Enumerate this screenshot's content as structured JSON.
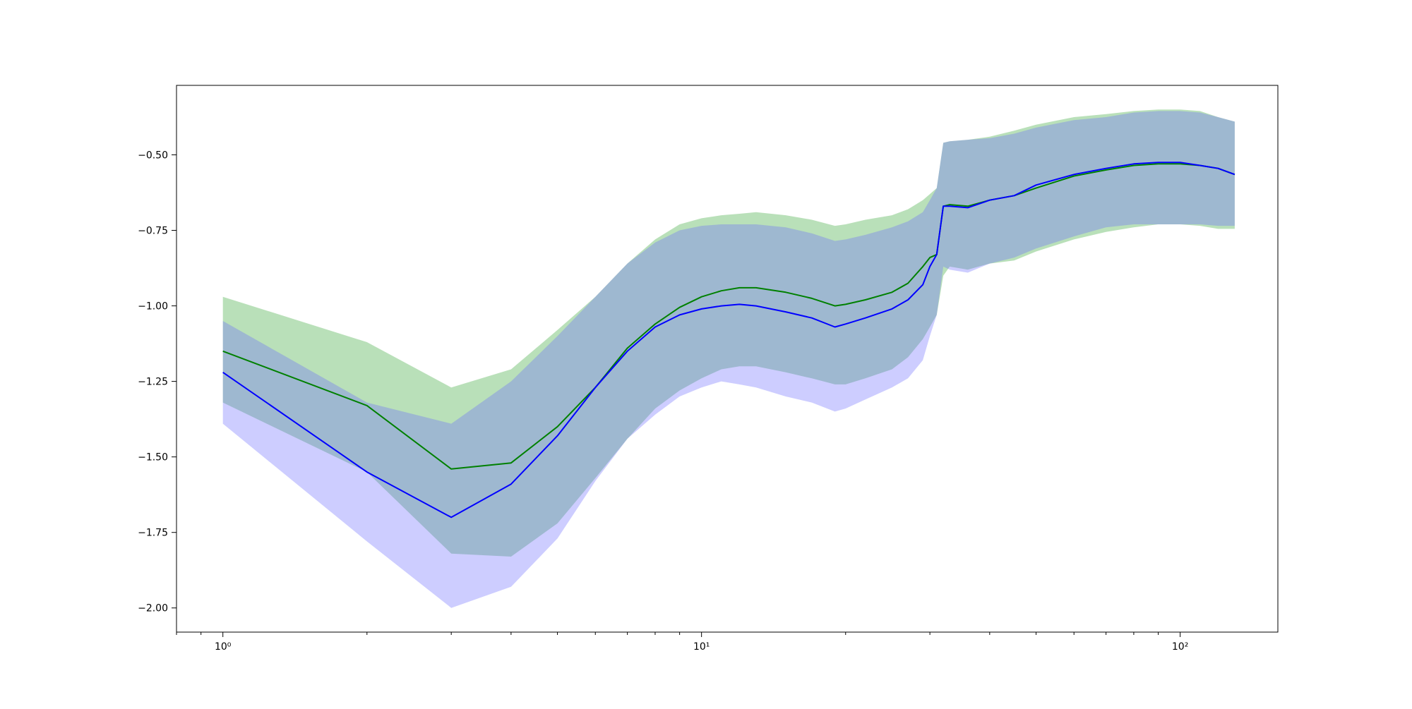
{
  "chart_data": {
    "type": "line",
    "title": "",
    "xlabel": "",
    "ylabel": "",
    "x_scale": "log",
    "xlim": [
      0.8,
      160
    ],
    "ylim": [
      -2.08,
      -0.27
    ],
    "grid": false,
    "legend": "none",
    "x_ticks": [
      {
        "value": 1,
        "label": "10⁰"
      },
      {
        "value": 10,
        "label": "10¹"
      },
      {
        "value": 100,
        "label": "10²"
      }
    ],
    "y_ticks": [
      {
        "value": -0.5,
        "label": "−0.50"
      },
      {
        "value": -0.75,
        "label": "−0.75"
      },
      {
        "value": -1.0,
        "label": "−1.00"
      },
      {
        "value": -1.25,
        "label": "−1.25"
      },
      {
        "value": -1.5,
        "label": "−1.50"
      },
      {
        "value": -1.75,
        "label": "−1.75"
      },
      {
        "value": -2.0,
        "label": "−2.00"
      }
    ],
    "series": [
      {
        "color": "#008000",
        "band_color": "#2ca02c",
        "x": [
          1,
          2,
          3,
          4,
          5,
          6,
          7,
          8,
          9,
          10,
          11,
          12,
          13,
          15,
          17,
          19,
          20,
          22,
          25,
          27,
          29,
          30,
          31,
          32,
          33,
          36,
          40,
          45,
          50,
          60,
          70,
          80,
          90,
          100,
          110,
          120,
          130
        ],
        "y": [
          -1.15,
          -1.33,
          -1.54,
          -1.52,
          -1.4,
          -1.27,
          -1.14,
          -1.06,
          -1.005,
          -0.97,
          -0.95,
          -0.94,
          -0.94,
          -0.955,
          -0.975,
          -1.0,
          -0.995,
          -0.98,
          -0.955,
          -0.925,
          -0.87,
          -0.84,
          -0.83,
          -0.67,
          -0.665,
          -0.67,
          -0.65,
          -0.635,
          -0.61,
          -0.57,
          -0.55,
          -0.535,
          -0.53,
          -0.53,
          -0.535,
          -0.545,
          -0.565
        ],
        "lower": [
          -1.32,
          -1.55,
          -1.82,
          -1.83,
          -1.72,
          -1.57,
          -1.44,
          -1.34,
          -1.28,
          -1.24,
          -1.21,
          -1.2,
          -1.2,
          -1.22,
          -1.24,
          -1.26,
          -1.26,
          -1.24,
          -1.21,
          -1.17,
          -1.11,
          -1.07,
          -1.03,
          -0.9,
          -0.87,
          -0.88,
          -0.86,
          -0.85,
          -0.82,
          -0.78,
          -0.755,
          -0.74,
          -0.73,
          -0.73,
          -0.735,
          -0.745,
          -0.745
        ],
        "upper": [
          -0.97,
          -1.12,
          -1.27,
          -1.21,
          -1.08,
          -0.97,
          -0.86,
          -0.78,
          -0.73,
          -0.71,
          -0.7,
          -0.695,
          -0.69,
          -0.7,
          -0.715,
          -0.735,
          -0.73,
          -0.715,
          -0.7,
          -0.68,
          -0.65,
          -0.63,
          -0.61,
          -0.46,
          -0.455,
          -0.45,
          -0.44,
          -0.42,
          -0.4,
          -0.375,
          -0.365,
          -0.355,
          -0.35,
          -0.35,
          -0.355,
          -0.375,
          -0.39
        ]
      },
      {
        "color": "#0000ff",
        "band_color": "#6666ff",
        "x": [
          1,
          2,
          3,
          4,
          5,
          6,
          7,
          8,
          9,
          10,
          11,
          12,
          13,
          15,
          17,
          19,
          20,
          22,
          25,
          27,
          29,
          30,
          31,
          32,
          33,
          36,
          40,
          45,
          50,
          60,
          70,
          80,
          90,
          100,
          110,
          120,
          130
        ],
        "y": [
          -1.22,
          -1.55,
          -1.7,
          -1.59,
          -1.43,
          -1.27,
          -1.15,
          -1.07,
          -1.03,
          -1.01,
          -1.0,
          -0.995,
          -1.0,
          -1.02,
          -1.04,
          -1.07,
          -1.06,
          -1.04,
          -1.01,
          -0.98,
          -0.93,
          -0.87,
          -0.83,
          -0.67,
          -0.67,
          -0.675,
          -0.65,
          -0.635,
          -0.6,
          -0.565,
          -0.545,
          -0.53,
          -0.525,
          -0.525,
          -0.535,
          -0.545,
          -0.565
        ],
        "lower": [
          -1.39,
          -1.78,
          -2.0,
          -1.93,
          -1.77,
          -1.58,
          -1.44,
          -1.36,
          -1.3,
          -1.27,
          -1.25,
          -1.26,
          -1.27,
          -1.3,
          -1.32,
          -1.35,
          -1.34,
          -1.31,
          -1.27,
          -1.24,
          -1.18,
          -1.1,
          -1.03,
          -0.87,
          -0.88,
          -0.89,
          -0.86,
          -0.84,
          -0.81,
          -0.77,
          -0.74,
          -0.73,
          -0.73,
          -0.73,
          -0.73,
          -0.735,
          -0.735
        ],
        "upper": [
          -1.05,
          -1.32,
          -1.39,
          -1.25,
          -1.1,
          -0.97,
          -0.86,
          -0.79,
          -0.75,
          -0.735,
          -0.73,
          -0.73,
          -0.73,
          -0.74,
          -0.76,
          -0.785,
          -0.78,
          -0.765,
          -0.74,
          -0.72,
          -0.69,
          -0.65,
          -0.61,
          -0.46,
          -0.455,
          -0.45,
          -0.445,
          -0.43,
          -0.41,
          -0.385,
          -0.375,
          -0.36,
          -0.355,
          -0.355,
          -0.36,
          -0.375,
          -0.39
        ]
      }
    ]
  }
}
